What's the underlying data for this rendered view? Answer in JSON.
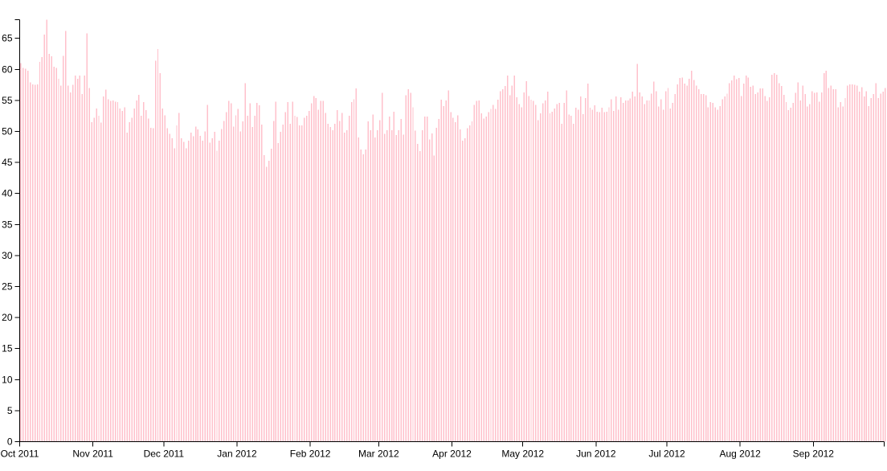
{
  "chart_data": {
    "type": "bar",
    "title": "",
    "xlabel": "",
    "ylabel": "",
    "bar_color": "#ffc0cb",
    "axis_color": "#000000",
    "x_start": "2011-10-01",
    "x_end": "2012-09-30",
    "ylim": [
      0,
      68
    ],
    "y_ticks": [
      0,
      5,
      10,
      15,
      20,
      25,
      30,
      35,
      40,
      45,
      50,
      55,
      60,
      65
    ],
    "x_ticks": [
      {
        "date": "2011-10-01",
        "label": "Oct 2011"
      },
      {
        "date": "2011-11-01",
        "label": "Nov 2011"
      },
      {
        "date": "2011-12-01",
        "label": "Dec 2011"
      },
      {
        "date": "2012-01-01",
        "label": "Jan 2012"
      },
      {
        "date": "2012-02-01",
        "label": "Feb 2012"
      },
      {
        "date": "2012-03-01",
        "label": "Mar 2012"
      },
      {
        "date": "2012-04-01",
        "label": "Apr 2012"
      },
      {
        "date": "2012-05-01",
        "label": "May 2012"
      },
      {
        "date": "2012-06-01",
        "label": "Jun 2012"
      },
      {
        "date": "2012-07-01",
        "label": "Jul 2012"
      },
      {
        "date": "2012-08-01",
        "label": "Aug 2012"
      },
      {
        "date": "2012-09-01",
        "label": "Sep 2012"
      }
    ],
    "values": [
      61.0,
      60.2,
      60.1,
      59.8,
      57.9,
      57.6,
      57.5,
      57.6,
      61.2,
      62.0,
      65.6,
      68.0,
      62.5,
      62.1,
      60.4,
      60.2,
      58.5,
      57.4,
      62.2,
      66.2,
      57.4,
      56.3,
      57.5,
      59.0,
      58.5,
      59.0,
      56.0,
      59.0,
      65.8,
      57.0,
      51.5,
      52.2,
      53.7,
      52.5,
      51.4,
      55.6,
      56.7,
      55.2,
      54.9,
      55.0,
      54.8,
      54.7,
      53.7,
      53.3,
      53.9,
      49.8,
      51.5,
      52.2,
      53.7,
      55.0,
      55.9,
      52.5,
      54.7,
      53.4,
      52.1,
      50.6,
      50.5,
      61.4,
      63.3,
      59.4,
      53.7,
      52.6,
      50.5,
      49.6,
      48.9,
      47.3,
      51.0,
      53.0,
      48.9,
      48.3,
      47.3,
      48.5,
      49.8,
      49.2,
      50.8,
      50.3,
      49.3,
      48.5,
      50.0,
      54.3,
      48.2,
      48.9,
      49.9,
      46.9,
      48.5,
      50.4,
      51.7,
      53.1,
      54.9,
      54.5,
      50.8,
      52.6,
      53.6,
      50.0,
      51.6,
      57.8,
      52.5,
      54.5,
      50.7,
      52.5,
      54.6,
      54.2,
      51.1,
      46.2,
      44.3,
      45.3,
      47.2,
      51.7,
      54.8,
      48.1,
      49.9,
      51.1,
      53.1,
      54.7,
      51.2,
      54.8,
      52.5,
      52.3,
      51.0,
      51.0,
      52.2,
      52.5,
      53.3,
      54.5,
      55.7,
      55.4,
      53.5,
      54.9,
      54.9,
      53.0,
      51.2,
      50.7,
      50.2,
      51.2,
      53.4,
      51.7,
      53.0,
      49.8,
      50.2,
      52.5,
      54.7,
      55.2,
      56.9,
      49.0,
      47.1,
      46.3,
      47.1,
      51.6,
      50.2,
      52.7,
      49.0,
      50.2,
      51.8,
      56.2,
      49.6,
      50.2,
      52.4,
      50.2,
      53.2,
      49.4,
      50.2,
      52.0,
      49.5,
      55.8,
      56.8,
      56.2,
      53.9,
      50.1,
      48.0,
      46.8,
      50.2,
      52.4,
      52.4,
      48.7,
      49.7,
      46.1,
      50.6,
      52.0,
      55.1,
      54.1,
      55.0,
      56.6,
      53.1,
      52.2,
      51.5,
      52.6,
      50.3,
      48.5,
      48.9,
      50.5,
      51.0,
      51.6,
      54.3,
      54.9,
      55.0,
      52.9,
      52.1,
      52.4,
      53.1,
      53.6,
      54.3,
      53.6,
      55.1,
      56.5,
      56.8,
      57.3,
      59.0,
      55.8,
      57.4,
      59.0,
      55.5,
      54.4,
      53.9,
      56.3,
      58.1,
      55.7,
      55.1,
      54.9,
      54.3,
      51.8,
      52.9,
      54.5,
      55.0,
      56.4,
      52.9,
      53.2,
      53.7,
      54.4,
      54.6,
      51.2,
      54.6,
      56.6,
      52.7,
      52.5,
      51.2,
      53.8,
      53.5,
      55.6,
      52.8,
      55.4,
      57.7,
      53.8,
      53.5,
      54.2,
      53.2,
      53.1,
      53.8,
      53.1,
      53.2,
      53.9,
      55.2,
      53.3,
      55.6,
      53.5,
      55.5,
      54.6,
      55.0,
      55.0,
      55.3,
      56.4,
      55.6,
      60.9,
      56.3,
      55.6,
      54.4,
      55.0,
      55.0,
      56.1,
      58.0,
      56.5,
      54.0,
      55.2,
      53.5,
      56.5,
      57.0,
      53.7,
      54.6,
      56.0,
      57.6,
      58.6,
      58.7,
      57.7,
      57.4,
      58.5,
      59.8,
      58.3,
      57.4,
      56.8,
      56.0,
      56.0,
      55.8,
      53.9,
      54.7,
      54.6,
      53.9,
      53.5,
      54.1,
      55.2,
      55.6,
      56.1,
      57.8,
      58.2,
      59.0,
      58.4,
      58.6,
      55.7,
      57.7,
      59.0,
      58.7,
      57.2,
      57.4,
      56.0,
      56.3,
      56.9,
      56.9,
      55.7,
      54.9,
      55.5,
      59.1,
      59.4,
      59.1,
      57.8,
      57.3,
      55.9,
      54.7,
      53.4,
      53.8,
      54.6,
      56.2,
      57.9,
      55.0,
      57.4,
      56.0,
      54.0,
      54.4,
      56.5,
      56.2,
      56.3,
      54.8,
      56.3,
      59.4,
      59.8,
      57.0,
      57.4,
      56.8,
      56.8,
      53.9,
      54.7,
      54.0,
      55.4,
      57.4,
      57.6,
      57.6,
      57.5,
      57.4,
      56.4,
      57.1,
      55.6,
      56.5,
      54.1,
      55.4,
      56.0,
      57.8,
      55.4,
      56.1,
      56.4,
      57.0,
      55.2,
      54.3,
      54.5,
      54.8,
      53.3,
      55.0,
      56.1
    ]
  }
}
